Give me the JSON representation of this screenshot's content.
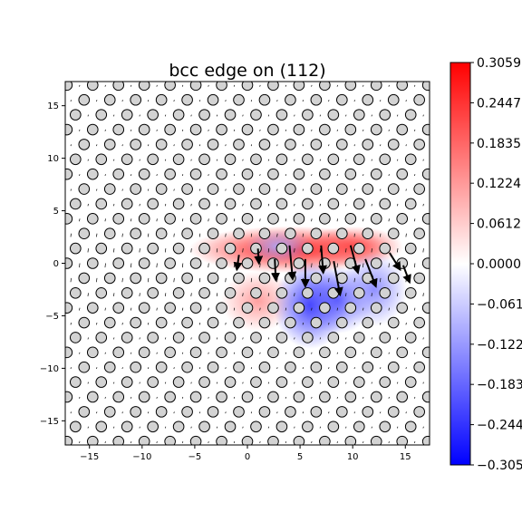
{
  "chart_data": {
    "type": "scatter",
    "title": "bcc edge on (112)",
    "xlabel": "",
    "ylabel": "",
    "xlim": [
      -17.3,
      17.3
    ],
    "ylim": [
      -17.3,
      17.3
    ],
    "xticks": [
      -15,
      -10,
      -5,
      0,
      5,
      10,
      15
    ],
    "yticks": [
      -15,
      -10,
      -5,
      0,
      5,
      10,
      15
    ],
    "grid": false,
    "lattice": {
      "row_spacing_y": 1.414,
      "row_spacing_x": 2.449,
      "row_offset_x": 0.816,
      "atom_radius": 0.5,
      "atom_fill": "#d3d3d3",
      "atom_edge": "#000000"
    },
    "colorbar": {
      "min": -0.3059,
      "max": 0.3059,
      "colormap": "bwr",
      "tick_values": [
        0.3059,
        0.2447,
        0.1835,
        0.1224,
        0.0612,
        0.0,
        -0.0612,
        -0.1224,
        -0.1835,
        -0.2447,
        -0.3059
      ],
      "tick_labels": [
        "0.3059",
        "0.2447",
        "0.1835",
        "0.1224",
        "0.0612",
        "0.0000",
        "−0.0612",
        "−0.1224",
        "−0.1835",
        "−0.2447",
        "−0.3059"
      ]
    },
    "strain_field": [
      {
        "x": 4.0,
        "y": 1.3,
        "sx": 6.0,
        "sy": 1.4,
        "value": 0.29
      },
      {
        "x": 10.0,
        "y": 1.6,
        "sx": 3.0,
        "sy": 1.2,
        "value": 0.22
      },
      {
        "x": 1.0,
        "y": -3.6,
        "sx": 2.2,
        "sy": 1.8,
        "value": 0.12
      },
      {
        "x": 3.0,
        "y": 1.6,
        "sx": 2.0,
        "sy": 1.0,
        "value": -0.1
      },
      {
        "x": 6.0,
        "y": -4.0,
        "sx": 2.2,
        "sy": 2.6,
        "value": -0.24
      },
      {
        "x": 8.5,
        "y": -3.5,
        "sx": 2.2,
        "sy": 2.0,
        "value": -0.2
      },
      {
        "x": 12.0,
        "y": -2.5,
        "sx": 2.0,
        "sy": 2.2,
        "value": -0.14
      }
    ],
    "arrows": [
      {
        "x": 4.0,
        "y": 1.7,
        "dx": 0.3,
        "dy": -3.2
      },
      {
        "x": 5.5,
        "y": 0.4,
        "dx": 0.0,
        "dy": -2.6
      },
      {
        "x": 7.0,
        "y": 1.7,
        "dx": 0.2,
        "dy": -2.6
      },
      {
        "x": 8.2,
        "y": 0.2,
        "dx": 0.6,
        "dy": -3.2
      },
      {
        "x": 9.8,
        "y": 1.7,
        "dx": 0.7,
        "dy": -2.6
      },
      {
        "x": 11.2,
        "y": 0.4,
        "dx": 1.0,
        "dy": -2.6
      },
      {
        "x": 2.6,
        "y": 0.4,
        "dx": 0.1,
        "dy": -2.0
      },
      {
        "x": 1.0,
        "y": 1.4,
        "dx": 0.1,
        "dy": -1.4
      },
      {
        "x": -0.8,
        "y": 0.8,
        "dx": -0.2,
        "dy": -1.4
      },
      {
        "x": 13.5,
        "y": 1.0,
        "dx": 1.0,
        "dy": -1.6
      },
      {
        "x": 14.8,
        "y": -0.2,
        "dx": 0.6,
        "dy": -1.6
      }
    ]
  }
}
